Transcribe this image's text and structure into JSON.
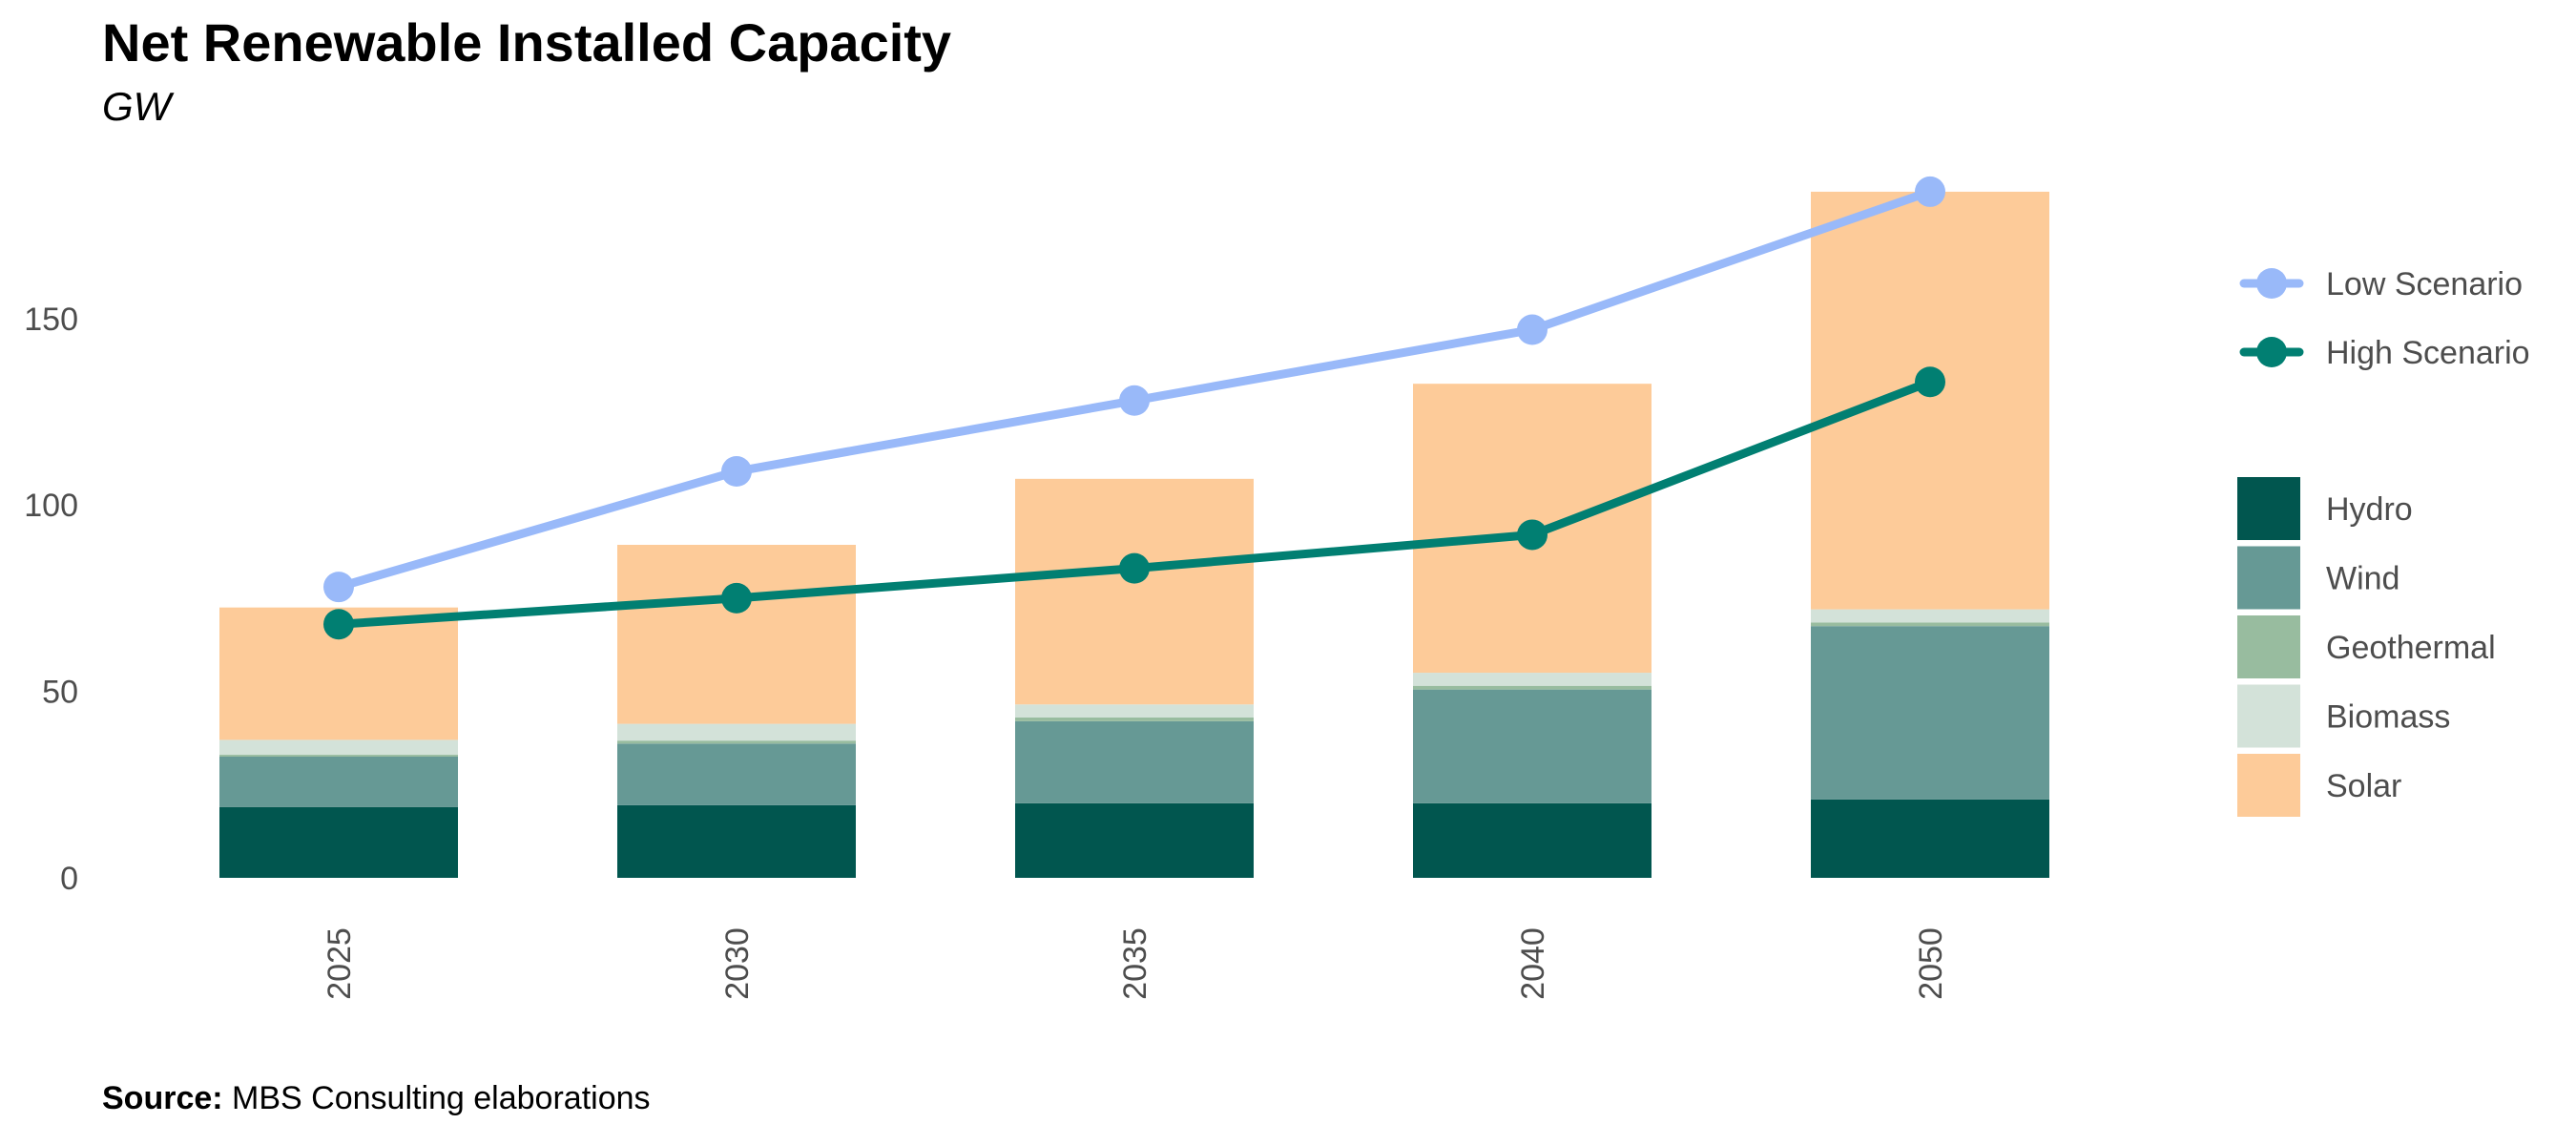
{
  "title": "Net Renewable Installed Capacity",
  "subtitle": "GW",
  "source": {
    "label": "Source:",
    "text": "MBS Consulting elaborations"
  },
  "chart_data": {
    "type": "bar",
    "stacked": true,
    "title": "Net Renewable Installed Capacity",
    "subtitle": "GW",
    "categories": [
      "2025",
      "2030",
      "2035",
      "2040",
      "2050"
    ],
    "ylim": [
      0,
      185
    ],
    "yticks": [
      0,
      50,
      100,
      150
    ],
    "grid": false,
    "bar_series": [
      {
        "name": "Hydro",
        "color": "#01564f",
        "values": [
          19,
          19.5,
          20,
          20,
          21
        ]
      },
      {
        "name": "Wind",
        "color": "#669995",
        "values": [
          13.5,
          16.5,
          22,
          30.5,
          46.5
        ]
      },
      {
        "name": "Geothermal",
        "color": "#98bc9f",
        "values": [
          0.5,
          0.8,
          1,
          1,
          1
        ]
      },
      {
        "name": "Biomass",
        "color": "#d3e2d9",
        "values": [
          4,
          4.5,
          3.5,
          3.5,
          3.5
        ]
      },
      {
        "name": "Solar",
        "color": "#fdcb99",
        "values": [
          35.5,
          48,
          60.5,
          77.5,
          112
        ]
      }
    ],
    "line_series": [
      {
        "name": "Low Scenario",
        "color": "#99b9f9",
        "values": [
          78,
          109,
          128,
          147,
          184
        ]
      },
      {
        "name": "High Scenario",
        "color": "#017f72",
        "values": [
          68,
          75,
          83,
          92,
          133
        ]
      }
    ],
    "legend_position": "right"
  }
}
